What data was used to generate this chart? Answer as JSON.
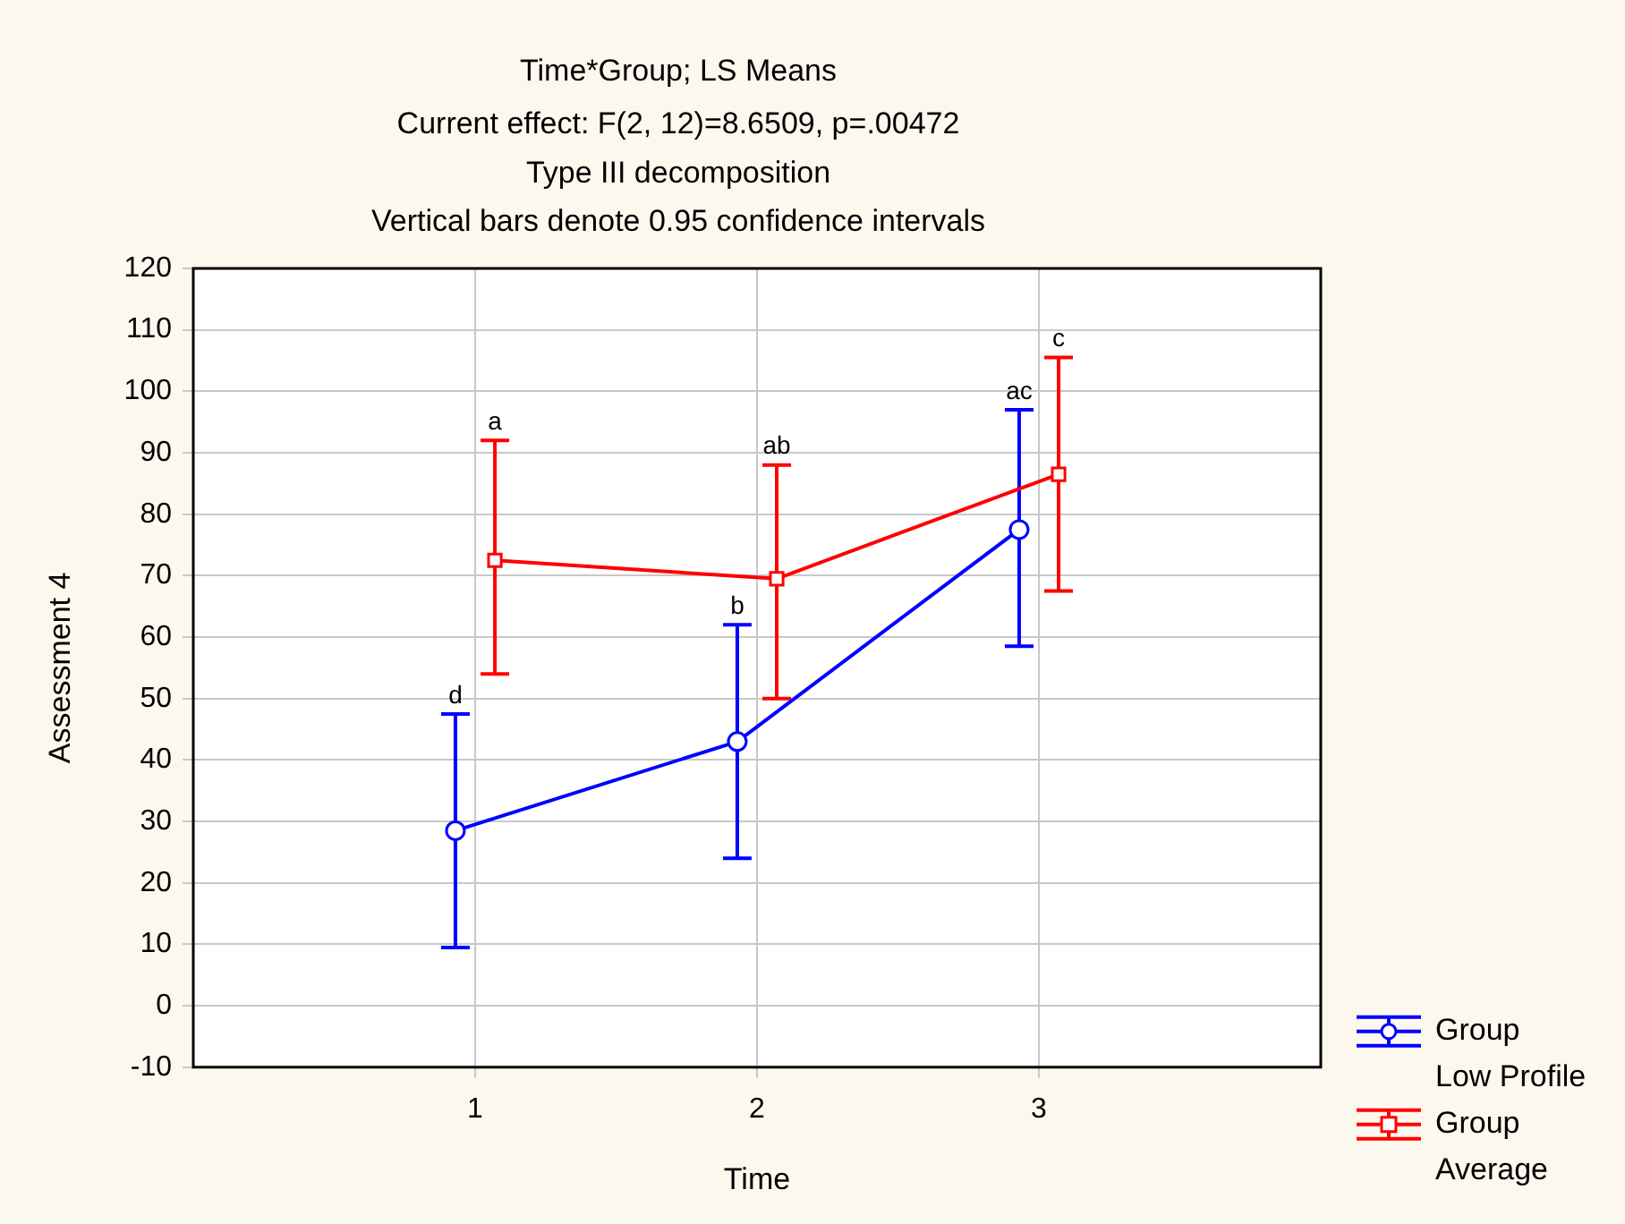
{
  "chart_data": {
    "type": "line",
    "title": "Time*Group; LS Means",
    "subtitle": "Current effect: F(2, 12)=8.6509, p=.00472",
    "annotations": [
      "Type III decomposition",
      "Vertical bars denote 0.95 confidence intervals",
      {
        "text": "d",
        "x": 0.93,
        "y": 47.5
      },
      {
        "text": "b",
        "x": 1.93,
        "y": 62
      },
      {
        "text": "ac",
        "x": 2.93,
        "y": 97
      },
      {
        "text": "a",
        "x": 1.07,
        "y": 92
      },
      {
        "text": "ab",
        "x": 2.07,
        "y": 88
      },
      {
        "text": "c",
        "x": 3.07,
        "y": 105.5
      }
    ],
    "xlabel": "Time",
    "ylabel": "Assessment 4",
    "xlim": [
      0,
      4
    ],
    "xticks": [
      1,
      2,
      3
    ],
    "ylim": [
      -10,
      120
    ],
    "yticks": [
      -10,
      0,
      10,
      20,
      30,
      40,
      50,
      60,
      70,
      80,
      90,
      100,
      110,
      120
    ],
    "series": [
      {
        "name": "Group Low Profile",
        "color": "#0000ff",
        "marker": "circle",
        "x": [
          0.93,
          1.93,
          2.93
        ],
        "values": [
          28.5,
          43,
          77.5
        ],
        "errors": [
          [
            9.5,
            47.5
          ],
          [
            24,
            62
          ],
          [
            58.5,
            97
          ]
        ]
      },
      {
        "name": "Group Average",
        "color": "#ff0000",
        "marker": "square",
        "x": [
          1.07,
          2.07,
          3.07
        ],
        "values": [
          72.5,
          69.5,
          86.5
        ],
        "errors": [
          [
            54,
            92
          ],
          [
            50,
            88
          ],
          [
            67.5,
            105.5
          ]
        ]
      }
    ],
    "grid": true,
    "legend": "bottom right",
    "line_style": "solid"
  }
}
